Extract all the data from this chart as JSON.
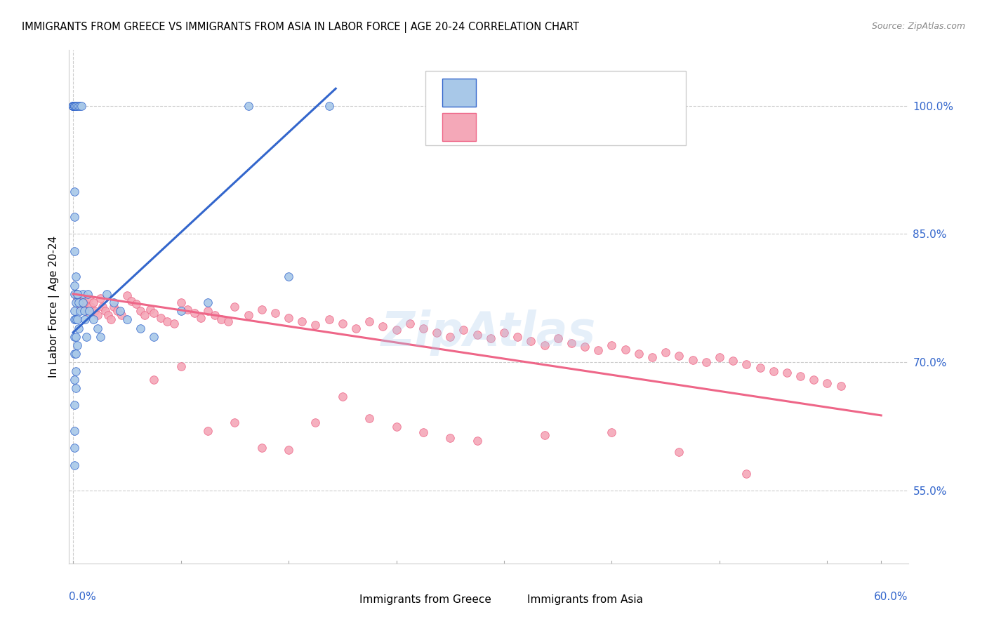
{
  "title": "IMMIGRANTS FROM GREECE VS IMMIGRANTS FROM ASIA IN LABOR FORCE | AGE 20-24 CORRELATION CHART",
  "source": "Source: ZipAtlas.com",
  "ylabel": "In Labor Force | Age 20-24",
  "color_greece": "#a8c8e8",
  "color_asia": "#f4a8b8",
  "line_greece": "#3366cc",
  "line_asia": "#ee6688",
  "watermark": "ZipAtlas",
  "greece_x": [
    0.0,
    0.0,
    0.0,
    0.0,
    0.0,
    0.0,
    0.0,
    0.0,
    0.0,
    0.0,
    0.0,
    0.0,
    0.0,
    0.0,
    0.0,
    0.0,
    0.0,
    0.0,
    0.0,
    0.0,
    0.001,
    0.001,
    0.001,
    0.001,
    0.001,
    0.001,
    0.001,
    0.001,
    0.001,
    0.001,
    0.001,
    0.001,
    0.001,
    0.001,
    0.001,
    0.001,
    0.001,
    0.001,
    0.001,
    0.001,
    0.002,
    0.002,
    0.002,
    0.002,
    0.002,
    0.002,
    0.002,
    0.002,
    0.002,
    0.002,
    0.003,
    0.003,
    0.003,
    0.003,
    0.004,
    0.004,
    0.004,
    0.005,
    0.005,
    0.006,
    0.007,
    0.008,
    0.009,
    0.01,
    0.011,
    0.012,
    0.015,
    0.018,
    0.02,
    0.025,
    0.03,
    0.035,
    0.04,
    0.05,
    0.06,
    0.08,
    0.1,
    0.13,
    0.16,
    0.19,
    0.007,
    0.003
  ],
  "greece_y": [
    1.0,
    1.0,
    1.0,
    1.0,
    1.0,
    1.0,
    1.0,
    1.0,
    1.0,
    1.0,
    1.0,
    1.0,
    1.0,
    1.0,
    1.0,
    1.0,
    1.0,
    1.0,
    1.0,
    1.0,
    1.0,
    1.0,
    1.0,
    1.0,
    1.0,
    1.0,
    0.9,
    0.87,
    0.83,
    0.79,
    0.76,
    0.73,
    0.71,
    0.68,
    0.65,
    0.62,
    0.6,
    0.58,
    0.78,
    0.75,
    1.0,
    1.0,
    1.0,
    0.8,
    0.77,
    0.75,
    0.73,
    0.71,
    0.69,
    0.67,
    1.0,
    0.78,
    0.75,
    0.72,
    1.0,
    0.77,
    0.74,
    1.0,
    0.76,
    1.0,
    0.78,
    0.76,
    0.75,
    0.73,
    0.78,
    0.76,
    0.75,
    0.74,
    0.73,
    0.78,
    0.77,
    0.76,
    0.75,
    0.74,
    0.73,
    0.76,
    0.77,
    1.0,
    0.8,
    1.0,
    0.77,
    0.78
  ],
  "asia_x": [
    0.002,
    0.003,
    0.005,
    0.006,
    0.008,
    0.009,
    0.01,
    0.012,
    0.013,
    0.015,
    0.016,
    0.018,
    0.02,
    0.022,
    0.024,
    0.026,
    0.028,
    0.03,
    0.033,
    0.036,
    0.04,
    0.043,
    0.047,
    0.05,
    0.053,
    0.057,
    0.06,
    0.065,
    0.07,
    0.075,
    0.08,
    0.085,
    0.09,
    0.095,
    0.1,
    0.105,
    0.11,
    0.115,
    0.12,
    0.13,
    0.14,
    0.15,
    0.16,
    0.17,
    0.18,
    0.19,
    0.2,
    0.21,
    0.22,
    0.23,
    0.24,
    0.25,
    0.26,
    0.27,
    0.28,
    0.29,
    0.3,
    0.31,
    0.32,
    0.33,
    0.34,
    0.35,
    0.36,
    0.37,
    0.38,
    0.39,
    0.4,
    0.41,
    0.42,
    0.43,
    0.44,
    0.45,
    0.46,
    0.47,
    0.48,
    0.49,
    0.5,
    0.51,
    0.52,
    0.53,
    0.54,
    0.55,
    0.56,
    0.57,
    0.06,
    0.08,
    0.1,
    0.12,
    0.14,
    0.16,
    0.18,
    0.2,
    0.22,
    0.24,
    0.26,
    0.28,
    0.3,
    0.35,
    0.4,
    0.45,
    0.5
  ],
  "asia_y": [
    0.78,
    0.775,
    0.77,
    0.765,
    0.775,
    0.768,
    0.76,
    0.775,
    0.765,
    0.77,
    0.76,
    0.755,
    0.775,
    0.765,
    0.76,
    0.755,
    0.75,
    0.765,
    0.76,
    0.755,
    0.778,
    0.772,
    0.768,
    0.76,
    0.755,
    0.762,
    0.758,
    0.752,
    0.748,
    0.745,
    0.77,
    0.762,
    0.758,
    0.752,
    0.76,
    0.755,
    0.75,
    0.748,
    0.765,
    0.755,
    0.762,
    0.758,
    0.752,
    0.748,
    0.744,
    0.75,
    0.745,
    0.74,
    0.748,
    0.742,
    0.738,
    0.745,
    0.74,
    0.735,
    0.73,
    0.738,
    0.732,
    0.728,
    0.735,
    0.73,
    0.725,
    0.72,
    0.728,
    0.722,
    0.718,
    0.714,
    0.72,
    0.715,
    0.71,
    0.706,
    0.712,
    0.708,
    0.703,
    0.7,
    0.706,
    0.702,
    0.698,
    0.694,
    0.69,
    0.688,
    0.684,
    0.68,
    0.676,
    0.672,
    0.68,
    0.695,
    0.62,
    0.63,
    0.6,
    0.598,
    0.63,
    0.66,
    0.635,
    0.625,
    0.618,
    0.612,
    0.608,
    0.615,
    0.618,
    0.595,
    0.57
  ],
  "greece_line_x": [
    0.0,
    0.195
  ],
  "greece_line_y": [
    0.735,
    1.02
  ],
  "asia_line_x": [
    0.0,
    0.6
  ],
  "asia_line_y": [
    0.78,
    0.638
  ],
  "xlim": [
    -0.003,
    0.62
  ],
  "ylim": [
    0.465,
    1.065
  ],
  "yticks": [
    0.55,
    0.7,
    0.85,
    1.0
  ],
  "ytick_labels": [
    "55.0%",
    "70.0%",
    "85.0%",
    "100.0%"
  ],
  "xtick_left_label": "0.0%",
  "xtick_right_label": "60.0%",
  "legend_bottom_greece": "Immigrants from Greece",
  "legend_bottom_asia": "Immigrants from Asia"
}
